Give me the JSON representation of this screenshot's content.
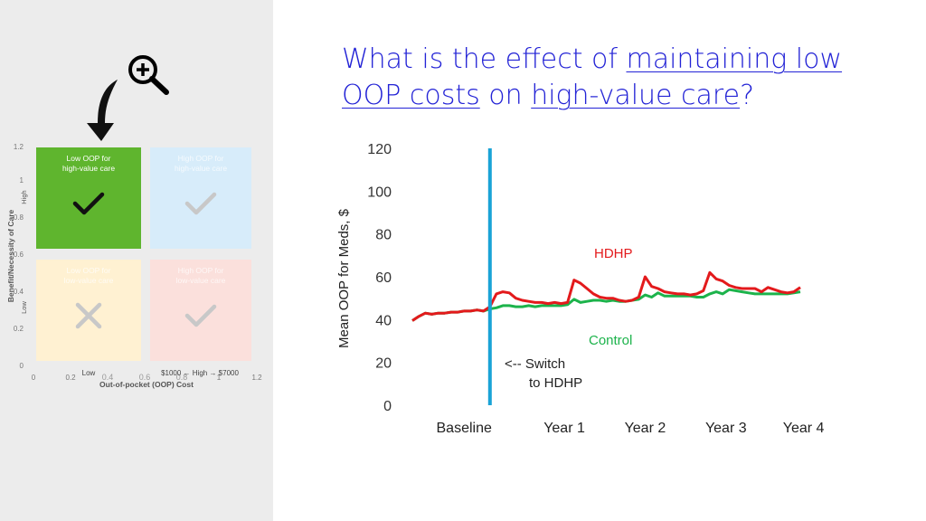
{
  "title": {
    "part1": "What is the effect of ",
    "link1": "maintaining low",
    "link2": "OOP costs",
    "part2": " on ",
    "link3": "high-value care",
    "part3": "?"
  },
  "matrix": {
    "quadrants": [
      {
        "label": "Low OOP for high-value care",
        "mark": "check",
        "color": "#5fb52e",
        "faded": false
      },
      {
        "label": "High OOP for high-value care",
        "mark": "check",
        "color": "#d7ecfa",
        "faded": true
      },
      {
        "label": "Low OOP for low-value care",
        "mark": "cross",
        "color": "#fff1d2",
        "faded": true
      },
      {
        "label": "High OOP for low-value care",
        "mark": "check",
        "color": "#fbe0dc",
        "faded": true
      }
    ],
    "ylabel": "Benefit/Necessity of Care",
    "ylabel_high": "High",
    "ylabel_low": "Low",
    "xlabel": "Out-of-pocket (OOP) Cost",
    "xlabel_low": "Low",
    "xlabel_high": "$1000 ← High → $7000",
    "yticks": [
      "1.2",
      "1",
      "0.8",
      "0.6",
      "0.4",
      "0.2",
      "0"
    ],
    "xticks": [
      "0",
      "0.2",
      "0.4",
      "0.6",
      "0.8",
      "1",
      "1.2"
    ]
  },
  "icons": {
    "zoom": "zoom-in-icon",
    "arrow": "curved-arrow-down-icon"
  },
  "chart_data": {
    "type": "line",
    "ylabel": "Mean OOP for Meds, $",
    "ylim": [
      0,
      120
    ],
    "yticks": [
      0,
      20,
      40,
      60,
      80,
      100,
      120
    ],
    "xlim": [
      0,
      60
    ],
    "periods": [
      "Baseline",
      "Year 1",
      "Year 2",
      "Year 3",
      "Year 4"
    ],
    "switch_x": 12,
    "switch_label_line1": "<-- Switch",
    "switch_label_line2": "to HDHP",
    "series": [
      {
        "name": "HDHP",
        "color": "#e31a1c",
        "x": [
          0,
          1,
          2,
          3,
          4,
          5,
          6,
          7,
          8,
          9,
          10,
          11,
          12,
          13,
          14,
          15,
          16,
          17,
          18,
          19,
          20,
          21,
          22,
          23,
          24,
          25,
          26,
          27,
          28,
          29,
          30,
          31,
          32,
          33,
          34,
          35,
          36,
          37,
          38,
          39,
          40,
          41,
          42,
          43,
          44,
          45,
          46,
          47,
          48,
          49,
          50,
          51,
          52,
          53,
          54,
          55,
          56,
          57,
          58,
          59,
          60
        ],
        "values": [
          39.5,
          41.5,
          43,
          42.5,
          43,
          43,
          43.5,
          43.5,
          44,
          44,
          44.5,
          44,
          46,
          52,
          53,
          52.5,
          50,
          49,
          48.5,
          48,
          48,
          47.5,
          48,
          47.5,
          48,
          58.5,
          57,
          54.5,
          52,
          50.5,
          50,
          50,
          49,
          48.5,
          49,
          50.5,
          60,
          55.5,
          54.5,
          53,
          52.5,
          52,
          52,
          51.5,
          52,
          53.5,
          62,
          59,
          58,
          56,
          55,
          54.5,
          54.5,
          54.5,
          53,
          55,
          54,
          53,
          52.5,
          53,
          55
        ]
      },
      {
        "name": "Control",
        "color": "#1cb34b",
        "x": [
          0,
          1,
          2,
          3,
          4,
          5,
          6,
          7,
          8,
          9,
          10,
          11,
          12,
          13,
          14,
          15,
          16,
          17,
          18,
          19,
          20,
          21,
          22,
          23,
          24,
          25,
          26,
          27,
          28,
          29,
          30,
          31,
          32,
          33,
          34,
          35,
          36,
          37,
          38,
          39,
          40,
          41,
          42,
          43,
          44,
          45,
          46,
          47,
          48,
          49,
          50,
          51,
          52,
          53,
          54,
          55,
          56,
          57,
          58,
          59,
          60
        ],
        "values": [
          39.5,
          41.5,
          43,
          42.5,
          43,
          43,
          43.5,
          43.5,
          44,
          44,
          44.5,
          44,
          45,
          45.5,
          46.5,
          46.5,
          46,
          46,
          46.5,
          46,
          46.5,
          46.5,
          46.5,
          46.5,
          47,
          49.5,
          48,
          48.5,
          49,
          49,
          48.5,
          49,
          48.5,
          48.5,
          49,
          49.5,
          51.5,
          50.5,
          52.5,
          51,
          51,
          51,
          51,
          51,
          50.5,
          50.5,
          52,
          53,
          52,
          54,
          53.5,
          53,
          52.5,
          52,
          52,
          52,
          52,
          52,
          52,
          52.5,
          53
        ]
      }
    ]
  }
}
